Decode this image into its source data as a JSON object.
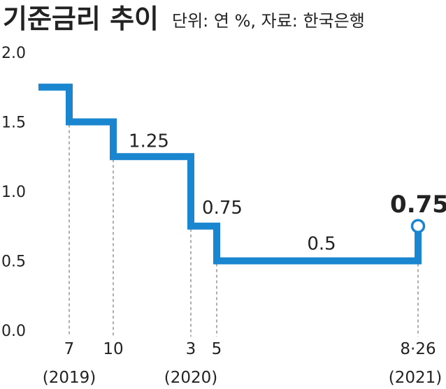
{
  "chart_data": {
    "type": "line",
    "title": "기준금리 추이",
    "subtitle": "단위: 연 %, 자료: 한국은행",
    "ylim": [
      0.0,
      2.0
    ],
    "yticks": [
      "2.0",
      "1.5",
      "1.0",
      "0.5",
      "0.0"
    ],
    "grid": false,
    "series": [
      {
        "color": "#1a86d0",
        "steps": [
          1.75,
          1.5,
          1.25,
          0.75,
          0.5,
          0.75
        ]
      }
    ],
    "change_points": [
      {
        "label": "7",
        "sub": "(2019)",
        "from": 1.75,
        "to": 1.5
      },
      {
        "label": "10",
        "sub": "",
        "from": 1.5,
        "to": 1.25
      },
      {
        "label": "3",
        "sub": "(2020)",
        "from": 1.25,
        "to": 0.75
      },
      {
        "label": "5",
        "sub": "",
        "from": 0.75,
        "to": 0.5
      },
      {
        "label": "8·26",
        "sub": "(2021)",
        "from": 0.5,
        "to": 0.75
      }
    ],
    "data_labels": [
      "1.25",
      "0.75",
      "0.5",
      "0.75"
    ]
  }
}
